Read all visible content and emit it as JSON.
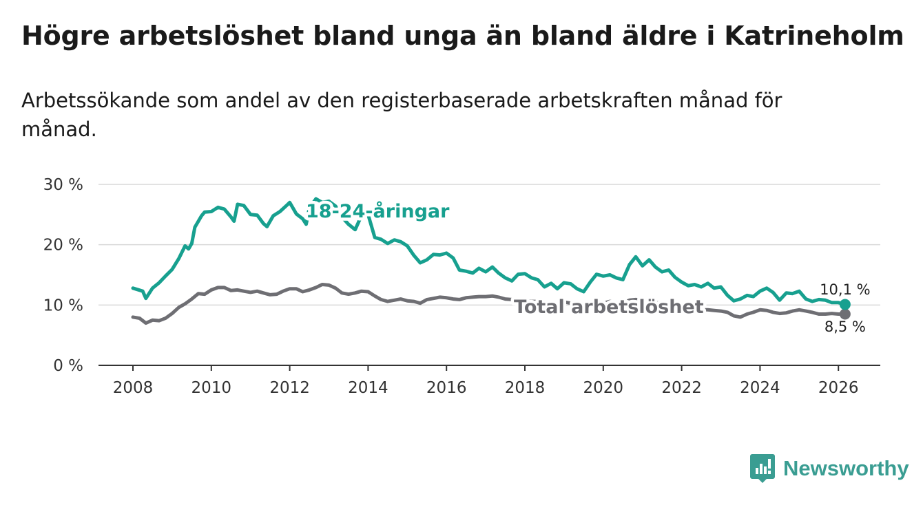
{
  "title": "Högre arbetslöshet bland unga än bland äldre i Katrineholm",
  "subtitle": "Arbetssökande som andel av den registerbaserade arbetskraften månad för månad.",
  "brand": {
    "name": "Newsworthy",
    "icon": "newsworthy-logo-icon",
    "color": "#3a9d92"
  },
  "chart_data": {
    "type": "line",
    "title": "Högre arbetslöshet bland unga än bland äldre i Katrineholm",
    "xlabel": "",
    "ylabel": "",
    "xlim": [
      2007.0,
      2027.0
    ],
    "ylim": [
      0,
      30
    ],
    "grid": true,
    "x_ticks": [
      2008,
      2010,
      2012,
      2014,
      2016,
      2018,
      2020,
      2022,
      2024,
      2026
    ],
    "x_tick_labels": [
      "2008",
      "2010",
      "2012",
      "2014",
      "2016",
      "2018",
      "2020",
      "2022",
      "2024",
      "2026"
    ],
    "y_ticks": [
      0,
      10,
      20,
      30
    ],
    "y_tick_labels": [
      "0 %",
      "10 %",
      "20 %",
      "30 %"
    ],
    "series": [
      {
        "name": "18-24-åringar",
        "color": "#17a08f",
        "end_label": "10,1 %",
        "points": [
          [
            2008.0,
            12.8
          ],
          [
            2008.25,
            12.3
          ],
          [
            2008.33,
            11.1
          ],
          [
            2008.5,
            12.8
          ],
          [
            2008.67,
            13.7
          ],
          [
            2008.83,
            14.8
          ],
          [
            2009.0,
            15.9
          ],
          [
            2009.17,
            17.7
          ],
          [
            2009.33,
            19.8
          ],
          [
            2009.42,
            19.3
          ],
          [
            2009.5,
            20.2
          ],
          [
            2009.58,
            22.9
          ],
          [
            2009.75,
            24.8
          ],
          [
            2009.83,
            25.4
          ],
          [
            2010.0,
            25.5
          ],
          [
            2010.17,
            26.2
          ],
          [
            2010.33,
            25.9
          ],
          [
            2010.5,
            24.6
          ],
          [
            2010.58,
            23.9
          ],
          [
            2010.67,
            26.7
          ],
          [
            2010.83,
            26.5
          ],
          [
            2011.0,
            25.0
          ],
          [
            2011.17,
            24.9
          ],
          [
            2011.33,
            23.5
          ],
          [
            2011.42,
            23.0
          ],
          [
            2011.58,
            24.8
          ],
          [
            2011.75,
            25.5
          ],
          [
            2011.92,
            26.5
          ],
          [
            2012.0,
            27.0
          ],
          [
            2012.17,
            25.1
          ],
          [
            2012.33,
            24.3
          ],
          [
            2012.42,
            23.4
          ],
          [
            2012.5,
            26.1
          ],
          [
            2012.67,
            27.6
          ],
          [
            2012.83,
            27.0
          ],
          [
            2013.0,
            27.2
          ],
          [
            2013.17,
            26.4
          ],
          [
            2013.33,
            24.6
          ],
          [
            2013.5,
            23.4
          ],
          [
            2013.67,
            22.5
          ],
          [
            2013.83,
            24.8
          ],
          [
            2014.0,
            25.0
          ],
          [
            2014.17,
            21.2
          ],
          [
            2014.33,
            20.9
          ],
          [
            2014.5,
            20.2
          ],
          [
            2014.67,
            20.8
          ],
          [
            2014.83,
            20.5
          ],
          [
            2015.0,
            19.8
          ],
          [
            2015.17,
            18.2
          ],
          [
            2015.33,
            17.0
          ],
          [
            2015.5,
            17.5
          ],
          [
            2015.67,
            18.4
          ],
          [
            2015.83,
            18.3
          ],
          [
            2016.0,
            18.6
          ],
          [
            2016.17,
            17.8
          ],
          [
            2016.33,
            15.8
          ],
          [
            2016.5,
            15.6
          ],
          [
            2016.67,
            15.3
          ],
          [
            2016.83,
            16.1
          ],
          [
            2017.0,
            15.5
          ],
          [
            2017.17,
            16.3
          ],
          [
            2017.33,
            15.3
          ],
          [
            2017.5,
            14.5
          ],
          [
            2017.67,
            14.0
          ],
          [
            2017.83,
            15.1
          ],
          [
            2018.0,
            15.2
          ],
          [
            2018.17,
            14.5
          ],
          [
            2018.33,
            14.2
          ],
          [
            2018.5,
            13.0
          ],
          [
            2018.67,
            13.6
          ],
          [
            2018.83,
            12.7
          ],
          [
            2019.0,
            13.7
          ],
          [
            2019.17,
            13.5
          ],
          [
            2019.33,
            12.7
          ],
          [
            2019.5,
            12.2
          ],
          [
            2019.67,
            13.8
          ],
          [
            2019.83,
            15.1
          ],
          [
            2020.0,
            14.8
          ],
          [
            2020.17,
            15.0
          ],
          [
            2020.33,
            14.5
          ],
          [
            2020.5,
            14.2
          ],
          [
            2020.67,
            16.7
          ],
          [
            2020.83,
            18.0
          ],
          [
            2021.0,
            16.5
          ],
          [
            2021.17,
            17.5
          ],
          [
            2021.33,
            16.3
          ],
          [
            2021.5,
            15.5
          ],
          [
            2021.67,
            15.8
          ],
          [
            2021.83,
            14.6
          ],
          [
            2022.0,
            13.8
          ],
          [
            2022.17,
            13.2
          ],
          [
            2022.33,
            13.4
          ],
          [
            2022.5,
            13.0
          ],
          [
            2022.67,
            13.6
          ],
          [
            2022.83,
            12.8
          ],
          [
            2023.0,
            13.0
          ],
          [
            2023.17,
            11.6
          ],
          [
            2023.33,
            10.7
          ],
          [
            2023.5,
            11.0
          ],
          [
            2023.67,
            11.6
          ],
          [
            2023.83,
            11.4
          ],
          [
            2024.0,
            12.3
          ],
          [
            2024.17,
            12.8
          ],
          [
            2024.33,
            12.1
          ],
          [
            2024.5,
            10.8
          ],
          [
            2024.67,
            12.0
          ],
          [
            2024.83,
            11.9
          ],
          [
            2025.0,
            12.3
          ],
          [
            2025.17,
            11.0
          ],
          [
            2025.33,
            10.6
          ],
          [
            2025.5,
            10.9
          ],
          [
            2025.67,
            10.8
          ],
          [
            2025.83,
            10.4
          ],
          [
            2026.0,
            10.4
          ],
          [
            2026.17,
            10.1
          ]
        ]
      },
      {
        "name": "Total arbetslöshet",
        "color": "#6e6e73",
        "end_label": "8,5 %",
        "points": [
          [
            2008.0,
            8.0
          ],
          [
            2008.17,
            7.8
          ],
          [
            2008.33,
            7.0
          ],
          [
            2008.5,
            7.5
          ],
          [
            2008.67,
            7.4
          ],
          [
            2008.83,
            7.8
          ],
          [
            2009.0,
            8.6
          ],
          [
            2009.17,
            9.6
          ],
          [
            2009.33,
            10.2
          ],
          [
            2009.5,
            11.0
          ],
          [
            2009.67,
            11.9
          ],
          [
            2009.83,
            11.8
          ],
          [
            2010.0,
            12.5
          ],
          [
            2010.17,
            12.9
          ],
          [
            2010.33,
            12.9
          ],
          [
            2010.5,
            12.4
          ],
          [
            2010.67,
            12.5
          ],
          [
            2010.83,
            12.3
          ],
          [
            2011.0,
            12.1
          ],
          [
            2011.17,
            12.3
          ],
          [
            2011.33,
            12.0
          ],
          [
            2011.5,
            11.7
          ],
          [
            2011.67,
            11.8
          ],
          [
            2011.83,
            12.3
          ],
          [
            2012.0,
            12.7
          ],
          [
            2012.17,
            12.7
          ],
          [
            2012.33,
            12.2
          ],
          [
            2012.5,
            12.5
          ],
          [
            2012.67,
            12.9
          ],
          [
            2012.83,
            13.4
          ],
          [
            2013.0,
            13.3
          ],
          [
            2013.17,
            12.8
          ],
          [
            2013.33,
            12.0
          ],
          [
            2013.5,
            11.8
          ],
          [
            2013.67,
            12.0
          ],
          [
            2013.83,
            12.3
          ],
          [
            2014.0,
            12.2
          ],
          [
            2014.17,
            11.5
          ],
          [
            2014.33,
            10.9
          ],
          [
            2014.5,
            10.6
          ],
          [
            2014.67,
            10.8
          ],
          [
            2014.83,
            11.0
          ],
          [
            2015.0,
            10.7
          ],
          [
            2015.17,
            10.6
          ],
          [
            2015.33,
            10.3
          ],
          [
            2015.5,
            10.9
          ],
          [
            2015.67,
            11.1
          ],
          [
            2015.83,
            11.3
          ],
          [
            2016.0,
            11.2
          ],
          [
            2016.17,
            11.0
          ],
          [
            2016.33,
            10.9
          ],
          [
            2016.5,
            11.2
          ],
          [
            2016.67,
            11.3
          ],
          [
            2016.83,
            11.4
          ],
          [
            2017.0,
            11.4
          ],
          [
            2017.17,
            11.5
          ],
          [
            2017.33,
            11.3
          ],
          [
            2017.5,
            11.0
          ],
          [
            2017.67,
            10.9
          ],
          [
            2017.83,
            10.8
          ],
          [
            2018.0,
            10.7
          ],
          [
            2018.17,
            10.6
          ],
          [
            2018.33,
            10.6
          ],
          [
            2018.5,
            10.3
          ],
          [
            2018.67,
            10.5
          ],
          [
            2018.83,
            10.2
          ],
          [
            2019.0,
            10.5
          ],
          [
            2019.17,
            10.3
          ],
          [
            2019.33,
            10.0
          ],
          [
            2019.5,
            9.8
          ],
          [
            2019.67,
            9.9
          ],
          [
            2019.83,
            10.0
          ],
          [
            2020.0,
            10.3
          ],
          [
            2020.17,
            10.6
          ],
          [
            2020.33,
            10.4
          ],
          [
            2020.5,
            10.3
          ],
          [
            2020.67,
            10.8
          ],
          [
            2020.83,
            10.9
          ],
          [
            2021.0,
            10.8
          ],
          [
            2021.17,
            10.7
          ],
          [
            2021.33,
            10.5
          ],
          [
            2021.5,
            10.1
          ],
          [
            2021.67,
            10.0
          ],
          [
            2021.83,
            9.8
          ],
          [
            2022.0,
            9.5
          ],
          [
            2022.17,
            9.4
          ],
          [
            2022.33,
            9.3
          ],
          [
            2022.5,
            9.2
          ],
          [
            2022.67,
            9.2
          ],
          [
            2022.83,
            9.1
          ],
          [
            2023.0,
            9.0
          ],
          [
            2023.17,
            8.8
          ],
          [
            2023.33,
            8.2
          ],
          [
            2023.5,
            8.0
          ],
          [
            2023.67,
            8.5
          ],
          [
            2023.83,
            8.8
          ],
          [
            2024.0,
            9.2
          ],
          [
            2024.17,
            9.1
          ],
          [
            2024.33,
            8.8
          ],
          [
            2024.5,
            8.6
          ],
          [
            2024.67,
            8.7
          ],
          [
            2024.83,
            9.0
          ],
          [
            2025.0,
            9.2
          ],
          [
            2025.17,
            9.0
          ],
          [
            2025.33,
            8.8
          ],
          [
            2025.5,
            8.5
          ],
          [
            2025.67,
            8.5
          ],
          [
            2025.83,
            8.6
          ],
          [
            2026.0,
            8.5
          ],
          [
            2026.17,
            8.5
          ]
        ]
      }
    ]
  }
}
